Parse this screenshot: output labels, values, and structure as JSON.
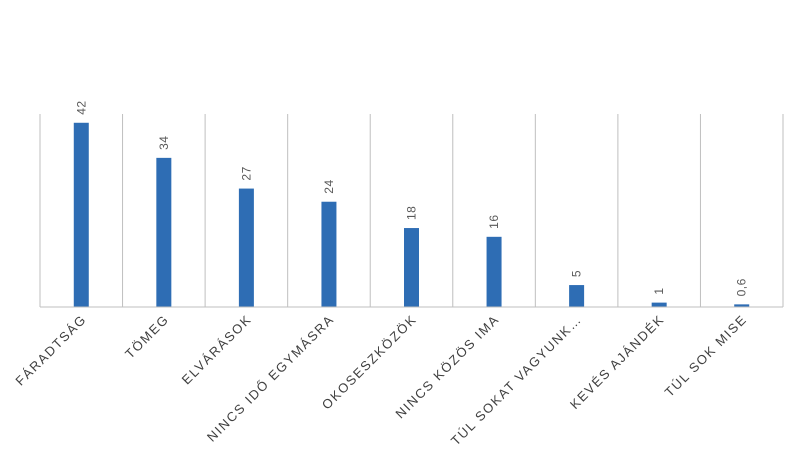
{
  "chart_data": {
    "type": "bar",
    "title": "",
    "xlabel": "",
    "ylabel": "",
    "categories": [
      "FÁRADTSÁG",
      "TÖMEG",
      "ELVÁRÁSOK",
      "NINCS IDŐ EGYMÁSRA",
      "OKOSESZKÖZÖK",
      "NINCS KÖZÖS IMA",
      "TÚL SOKAT VAGYUNK…",
      "KEVÉS AJÁNDÉK",
      "TÚL SOK MISE"
    ],
    "values": [
      42,
      34,
      27,
      24,
      18,
      16,
      5,
      1,
      0.6
    ],
    "value_labels": [
      "42",
      "34",
      "27",
      "24",
      "18",
      "16",
      "5",
      "1",
      "0,6"
    ],
    "ylim": [
      0,
      44
    ],
    "grid": "vertical category separators",
    "legend": "none",
    "bar_color": "#2E6DB4",
    "axis_color": "#BFBFBF"
  }
}
